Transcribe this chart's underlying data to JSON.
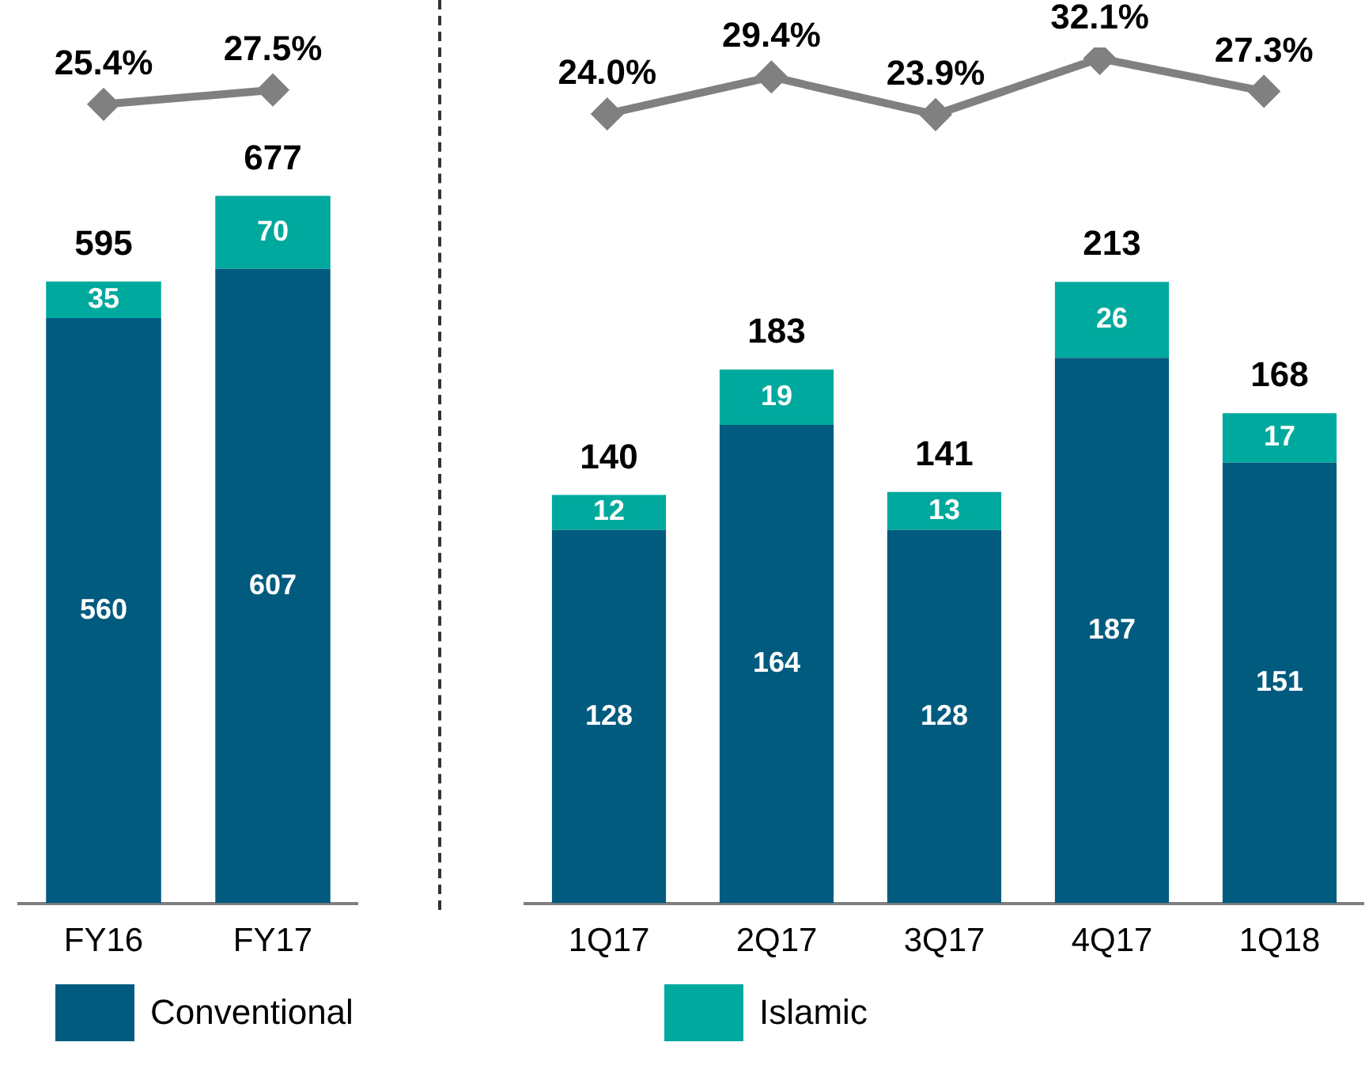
{
  "chart_data": [
    {
      "type": "line",
      "categories": [
        null,
        null
      ],
      "tick_labels": false,
      "marker": "diamond",
      "series": [
        {
          "color": "#808080",
          "values": [
            25.4,
            27.5
          ],
          "value_labels": [
            "25.4%",
            "27.5%"
          ]
        }
      ]
    },
    {
      "type": "bar",
      "categories": [
        "FY16",
        "FY17"
      ],
      "stacked": true,
      "data_labels": true,
      "legend": "bottom",
      "tick_labels": "x",
      "series": [
        {
          "name": "Conventional",
          "color": "#005b7f",
          "values": [
            560,
            607
          ]
        },
        {
          "name": "Islamic",
          "color": "#00a99d",
          "values": [
            35,
            70
          ]
        }
      ],
      "totals": [
        "595",
        "677"
      ]
    },
    {
      "type": "line",
      "categories": [
        null,
        null,
        null,
        null,
        null
      ],
      "tick_labels": false,
      "marker": "diamond",
      "series": [
        {
          "color": "#808080",
          "values": [
            24.0,
            29.4,
            23.9,
            32.1,
            27.3
          ],
          "value_labels": [
            "24.0%",
            "29.4%",
            "23.9%",
            "32.1%",
            "27.3%"
          ]
        }
      ]
    },
    {
      "type": "bar",
      "categories": [
        "1Q17",
        "2Q17",
        "3Q17",
        "4Q17",
        "1Q18"
      ],
      "stacked": true,
      "data_labels": true,
      "tick_labels": "x",
      "series": [
        {
          "color": "#005b7f",
          "values": [
            128,
            164,
            128,
            187,
            151
          ]
        },
        {
          "color": "#00a99d",
          "values": [
            12,
            19,
            13,
            26,
            17
          ]
        }
      ],
      "totals": [
        "140",
        "183",
        "141",
        "213",
        "168"
      ]
    }
  ]
}
